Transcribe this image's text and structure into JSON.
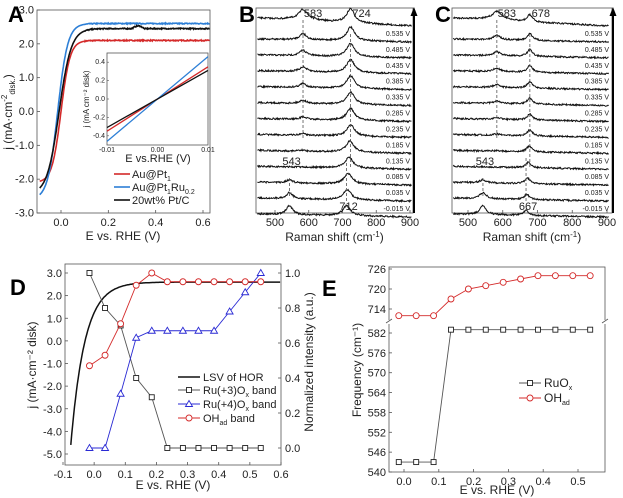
{
  "chart_data": [
    {
      "panel": "A",
      "type": "line",
      "xlabel": "E vs. RHE (V)",
      "ylabel": "j (mA·cm⁻² disk)",
      "xlim": [
        -0.09,
        0.63
      ],
      "ylim": [
        -3.0,
        3.0
      ],
      "xticks": [
        "0.0",
        "0.2",
        "0.4",
        "0.6"
      ],
      "yticks": [
        "3.0",
        "2.0",
        "1.0",
        "0.0",
        "-1.0",
        "-2.0",
        "-3.0"
      ],
      "series": [
        {
          "name": "Au@Pt1",
          "color": "#d42a2a",
          "limit": 2.1,
          "onset": 0.0,
          "k": 0.045
        },
        {
          "name": "Au@Pt1Ru0.2",
          "color": "#2d7fd6",
          "limit": 2.6,
          "onset": -0.01,
          "k": 0.05
        },
        {
          "name": "20wt% Pt/C",
          "color": "#111111",
          "limit": 2.45,
          "onset": 0.0,
          "k": 0.06
        }
      ],
      "legend": [
        "Au@Pt1",
        "Au@Pt1Ru0.2",
        "20wt% Pt/C"
      ],
      "legend_position": "bottom-right",
      "inset": {
        "xlabel": "E vs.RHE (V)",
        "ylabel": "j (mA cm⁻² disk)",
        "xlim": [
          -0.01,
          0.01
        ],
        "ylim": [
          -0.5,
          0.5
        ],
        "xticks": [
          "-0.01",
          "0.00",
          "0.01"
        ],
        "yticks": [
          "0.4",
          "0.2",
          "0.0",
          "-0.2",
          "-0.4"
        ],
        "slopes": [
          {
            "name": "Au@Pt1",
            "color": "#d42a2a",
            "slope": 35
          },
          {
            "name": "Au@Pt1Ru0.2",
            "color": "#2d7fd6",
            "slope": 46
          },
          {
            "name": "20wt% Pt/C",
            "color": "#111111",
            "slope": 31
          }
        ]
      }
    },
    {
      "panel": "B",
      "type": "line",
      "xlabel": "Raman shift (cm⁻¹)",
      "xlim": [
        445,
        905
      ],
      "xticks": [
        "500",
        "600",
        "700",
        "800",
        "900"
      ],
      "potentials": [
        "0.535 V",
        "0.485 V",
        "0.435 V",
        "0.385 V",
        "0.335 V",
        "0.285 V",
        "0.235 V",
        "0.185 V",
        "0.135 V",
        "0.085 V",
        "0.035 V",
        "-0.015 V"
      ],
      "annotations": [
        "583",
        "724",
        "543",
        "712"
      ],
      "peaks_top": [
        583,
        724
      ],
      "peaks_bottom": [
        543,
        712
      ]
    },
    {
      "panel": "C",
      "type": "line",
      "xlabel": "Raman shift (cm⁻¹)",
      "xlim": [
        450,
        905
      ],
      "xticks": [
        "500",
        "600",
        "700",
        "800",
        "900"
      ],
      "potentials": [
        "0.535 V",
        "0.485 V",
        "0.435 V",
        "0.385 V",
        "0.335 V",
        "0.285 V",
        "0.235 V",
        "0.185 V",
        "0.135 V",
        "0.085 V",
        "0.035 V",
        "-0.015 V"
      ],
      "annotations": [
        "583",
        "678",
        "543",
        "667"
      ],
      "peaks_top": [
        583,
        678
      ],
      "peaks_bottom": [
        543,
        667
      ]
    },
    {
      "panel": "D",
      "type": "line",
      "xlabel": "E vs. RHE (V)",
      "ylabel": "j (mA·cm⁻² disk)",
      "y2label": "Normalized intensity (a.u.)",
      "xlim": [
        -0.1,
        0.6
      ],
      "ylim": [
        -5.5,
        3.5
      ],
      "y2lim": [
        -0.1,
        1.05
      ],
      "xticks": [
        "-0.1",
        "0.0",
        "0.1",
        "0.2",
        "0.3",
        "0.4",
        "0.5",
        "0.6"
      ],
      "yticks": [
        "3.0",
        "2.0",
        "1.0",
        "0.0",
        "-1.0",
        "-2.0",
        "-3.0",
        "-4.0",
        "-5.0"
      ],
      "y2ticks": [
        "1.0",
        "0.8",
        "0.6",
        "0.4",
        "0.2",
        "0.0"
      ],
      "x": [
        -0.015,
        0.035,
        0.085,
        0.135,
        0.185,
        0.235,
        0.285,
        0.335,
        0.385,
        0.435,
        0.485,
        0.535
      ],
      "series": [
        {
          "name": "LSV of HOR",
          "color": "#111111",
          "type": "curve"
        },
        {
          "name": "Ru(+3)Ox band",
          "color": "#555555",
          "marker": "square",
          "values": [
            1.0,
            0.8,
            0.7,
            0.4,
            0.29,
            0.0,
            0.0,
            0.0,
            0.0,
            0.0,
            0.0,
            0.0
          ]
        },
        {
          "name": "Ru(+4)Ox band",
          "color": "#2a2ad4",
          "marker": "triangle",
          "values": [
            0.0,
            0.0,
            0.31,
            0.63,
            0.67,
            0.67,
            0.67,
            0.67,
            0.67,
            0.78,
            0.89,
            1.0
          ]
        },
        {
          "name": "OHad band",
          "color": "#d42a2a",
          "marker": "circle",
          "values": [
            0.47,
            0.53,
            0.71,
            0.93,
            1.0,
            0.95,
            0.95,
            0.95,
            0.95,
            0.95,
            0.95,
            0.95
          ]
        }
      ],
      "legend": [
        "LSV of HOR",
        "Ru(+3)Ox band",
        "Ru(+4)Ox band",
        "OHad band"
      ]
    },
    {
      "panel": "E",
      "type": "line",
      "xlabel": "E vs. RHE (V)",
      "ylabel": "Frequency (cm⁻¹)",
      "xticks": [
        "0.0",
        "0.1",
        "0.2",
        "0.3",
        "0.4",
        "0.5"
      ],
      "yticks_upper": [
        "726",
        "720",
        "714"
      ],
      "yticks_lower": [
        "582",
        "576",
        "570",
        "564",
        "558",
        "552",
        "546",
        "540"
      ],
      "x": [
        -0.015,
        0.035,
        0.085,
        0.135,
        0.185,
        0.235,
        0.285,
        0.335,
        0.385,
        0.435,
        0.485,
        0.535
      ],
      "series": [
        {
          "name": "RuOx",
          "color": "#555555",
          "marker": "square",
          "values": [
            543,
            543,
            543,
            583,
            583,
            583,
            583,
            583,
            583,
            583,
            583,
            583
          ]
        },
        {
          "name": "OHad",
          "color": "#d42a2a",
          "marker": "circle",
          "values": [
            712,
            712,
            712,
            717,
            720,
            721,
            722,
            723,
            724,
            724,
            724,
            724
          ]
        }
      ],
      "legend": [
        "RuOx",
        "OHad"
      ]
    }
  ],
  "panel_labels": [
    "A",
    "B",
    "C",
    "D",
    "E"
  ]
}
